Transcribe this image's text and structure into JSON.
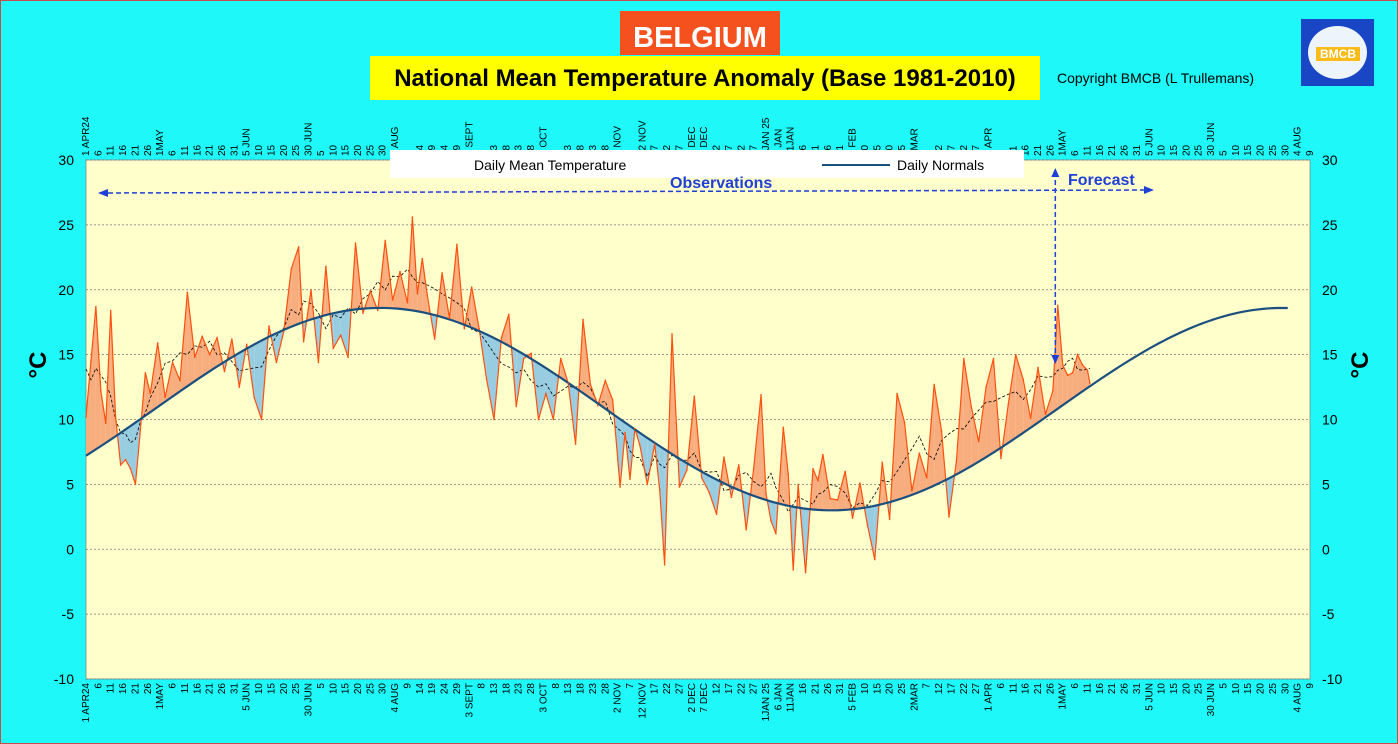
{
  "header": {
    "country": "BELGIUM",
    "title": "National Mean Temperature Anomaly (Base 1981-2010)",
    "copyright": "Copyright BMCB (L Trullemans)",
    "logo_text": "BMCB"
  },
  "colors": {
    "background": "#1ef8f8",
    "plot_area": "#ffffcc",
    "positive_anomaly": "#f8ad7e",
    "negative_anomaly": "#98cce0",
    "observed_line": "#ff5010",
    "normals_line": "#1b4f7e",
    "running_mean": "#000000",
    "annotation": "#1f3fd6"
  },
  "chart_data": {
    "type": "area",
    "title": "National Mean Temperature Anomaly (Base 1981-2010)",
    "ylabel": "°C",
    "ylim": [
      -10,
      30
    ],
    "yticks": [
      30,
      25,
      20,
      15,
      10,
      5,
      0,
      -5,
      -10
    ],
    "grid": true,
    "legend": {
      "position": "top-center",
      "entries": [
        "Daily Mean Temperature",
        "Daily Normals"
      ]
    },
    "annotations": {
      "observations": "Observations",
      "forecast": "Forecast",
      "forecast_start": "2025-04-28"
    },
    "x_start": "2024-04-01",
    "x_end": "2025-08-09",
    "x_tick_labels": [
      "1 APR24",
      "6",
      "11",
      "16",
      "21",
      "26",
      "1MAY",
      "6",
      "11",
      "16",
      "21",
      "26",
      "31",
      "5 JUN",
      "10",
      "15",
      "20",
      "25",
      "30 JUN",
      "5",
      "10",
      "15",
      "20",
      "25",
      "30",
      "4 AUG",
      "9",
      "14",
      "19",
      "24",
      "29",
      "3 SEPT",
      "8",
      "13",
      "18",
      "23",
      "28",
      "3 OCT",
      "8",
      "13",
      "18",
      "23",
      "28",
      "2 NOV",
      "7",
      "12 NOV",
      "17",
      "22",
      "27",
      "2 DEC",
      "7 DEC",
      "12",
      "17",
      "22",
      "27",
      "1JAN 25",
      "6 JAN",
      "11JAN",
      "16",
      "21",
      "26",
      "31",
      "5 FEB",
      "10",
      "15",
      "20",
      "25",
      "2MAR",
      "7",
      "12",
      "17",
      "22",
      "27",
      "1 APR",
      "6",
      "11",
      "16",
      "21",
      "26",
      "1MAY",
      "6",
      "11",
      "16",
      "21",
      "26",
      "31",
      "5 JUN",
      "10",
      "15",
      "20",
      "25",
      "30 JUN",
      "5",
      "10",
      "15",
      "20",
      "25",
      "30",
      "4 AUG",
      "9"
    ],
    "normals": {
      "name": "Daily Normals",
      "min_value": 3.0,
      "min_date": "2025-01-09",
      "max_value": 18.6,
      "max_date": "2024-07-29"
    },
    "series": [
      {
        "name": "Daily Mean Temperature",
        "x": [
          "2024-04-01",
          "2024-04-03",
          "2024-04-05",
          "2024-04-07",
          "2024-04-09",
          "2024-04-11",
          "2024-04-13",
          "2024-04-15",
          "2024-04-17",
          "2024-04-19",
          "2024-04-21",
          "2024-04-23",
          "2024-04-25",
          "2024-04-27",
          "2024-04-30",
          "2024-05-03",
          "2024-05-06",
          "2024-05-09",
          "2024-05-12",
          "2024-05-15",
          "2024-05-18",
          "2024-05-21",
          "2024-05-24",
          "2024-05-27",
          "2024-05-30",
          "2024-06-02",
          "2024-06-05",
          "2024-06-08",
          "2024-06-11",
          "2024-06-14",
          "2024-06-17",
          "2024-06-20",
          "2024-06-23",
          "2024-06-26",
          "2024-06-28",
          "2024-07-01",
          "2024-07-04",
          "2024-07-07",
          "2024-07-10",
          "2024-07-13",
          "2024-07-16",
          "2024-07-19",
          "2024-07-22",
          "2024-07-25",
          "2024-07-28",
          "2024-07-31",
          "2024-08-03",
          "2024-08-06",
          "2024-08-09",
          "2024-08-11",
          "2024-08-13",
          "2024-08-15",
          "2024-08-17",
          "2024-08-20",
          "2024-08-23",
          "2024-08-26",
          "2024-08-29",
          "2024-09-01",
          "2024-09-04",
          "2024-09-07",
          "2024-09-10",
          "2024-09-13",
          "2024-09-16",
          "2024-09-19",
          "2024-09-22",
          "2024-09-25",
          "2024-09-28",
          "2024-10-01",
          "2024-10-04",
          "2024-10-07",
          "2024-10-10",
          "2024-10-13",
          "2024-10-16",
          "2024-10-19",
          "2024-10-22",
          "2024-10-25",
          "2024-10-28",
          "2024-10-31",
          "2024-11-03",
          "2024-11-05",
          "2024-11-07",
          "2024-11-09",
          "2024-11-11",
          "2024-11-14",
          "2024-11-17",
          "2024-11-19",
          "2024-11-21",
          "2024-11-24",
          "2024-11-27",
          "2024-11-30",
          "2024-12-03",
          "2024-12-06",
          "2024-12-09",
          "2024-12-12",
          "2024-12-15",
          "2024-12-18",
          "2024-12-21",
          "2024-12-24",
          "2024-12-27",
          "2024-12-30",
          "2025-01-01",
          "2025-01-03",
          "2025-01-05",
          "2025-01-08",
          "2025-01-10",
          "2025-01-12",
          "2025-01-14",
          "2025-01-17",
          "2025-01-20",
          "2025-01-22",
          "2025-01-24",
          "2025-01-27",
          "2025-01-30",
          "2025-02-02",
          "2025-02-05",
          "2025-02-08",
          "2025-02-11",
          "2025-02-14",
          "2025-02-17",
          "2025-02-20",
          "2025-02-23",
          "2025-02-26",
          "2025-03-01",
          "2025-03-04",
          "2025-03-07",
          "2025-03-10",
          "2025-03-13",
          "2025-03-16",
          "2025-03-19",
          "2025-03-22",
          "2025-03-25",
          "2025-03-28",
          "2025-03-31",
          "2025-04-03",
          "2025-04-06",
          "2025-04-09",
          "2025-04-12",
          "2025-04-15",
          "2025-04-18",
          "2025-04-21",
          "2025-04-24",
          "2025-04-27",
          "2025-04-29",
          "2025-05-01",
          "2025-05-03",
          "2025-05-05",
          "2025-05-07",
          "2025-05-09",
          "2025-05-11",
          "2025-05-12"
        ],
        "values": [
          10.2,
          14.5,
          18.7,
          12.2,
          9.7,
          18.4,
          10.1,
          6.5,
          6.9,
          6.2,
          5.0,
          9.2,
          13.6,
          12.0,
          15.9,
          11.7,
          14.4,
          13.0,
          19.8,
          14.8,
          16.4,
          15.0,
          16.3,
          13.7,
          16.2,
          12.5,
          15.8,
          11.7,
          10.0,
          17.2,
          14.4,
          16.8,
          21.6,
          23.3,
          16.0,
          20.0,
          14.4,
          21.8,
          15.5,
          16.5,
          14.8,
          23.6,
          18.2,
          19.9,
          18.4,
          23.8,
          19.2,
          21.4,
          19.0,
          25.6,
          19.7,
          22.4,
          19.6,
          16.2,
          21.3,
          17.8,
          23.5,
          17.0,
          20.2,
          17.0,
          13.1,
          10.0,
          16.3,
          18.1,
          11.0,
          14.7,
          15.1,
          10.0,
          12.0,
          10.0,
          14.7,
          12.8,
          8.1,
          17.7,
          12.7,
          11.1,
          13.0,
          11.5,
          4.8,
          9.0,
          5.4,
          9.3,
          8.0,
          5.0,
          8.1,
          4.6,
          -1.2,
          16.6,
          4.8,
          6.1,
          11.8,
          5.5,
          4.4,
          2.7,
          7.1,
          4.0,
          6.5,
          1.5,
          6.2,
          11.9,
          4.3,
          2.2,
          1.2,
          9.4,
          5.8,
          -1.6,
          5.0,
          -1.8,
          6.2,
          5.3,
          7.3,
          3.9,
          3.8,
          6.0,
          2.4,
          5.1,
          1.9,
          -0.8,
          6.7,
          2.3,
          12.0,
          9.8,
          4.5,
          7.4,
          5.5,
          12.7,
          9.1,
          2.5,
          6.8,
          14.7,
          11.0,
          8.3,
          12.5,
          14.7,
          7.0,
          11.2,
          15.0,
          13.1,
          10.1,
          14.0,
          10.4,
          12.2,
          18.8,
          14.2,
          13.4,
          13.6,
          15.0,
          14.2,
          13.8,
          12.8
        ]
      }
    ]
  }
}
